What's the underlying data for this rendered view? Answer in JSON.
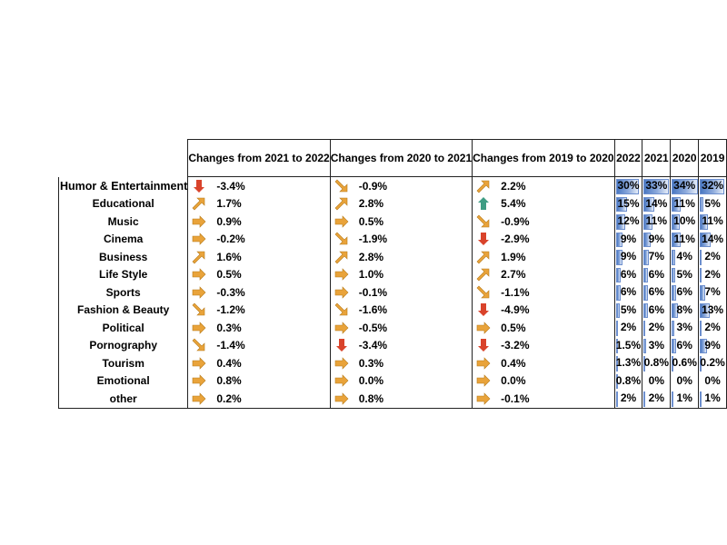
{
  "chart_data": {
    "type": "table",
    "columns": {
      "changes": [
        "Changes from 2021 to 2022",
        "Changes from 2020 to 2021",
        "Changes from 2019 to 2020"
      ],
      "years": [
        "2022",
        "2021",
        "2020",
        "2019"
      ]
    },
    "rows": [
      {
        "category": "Humor & Entertainment",
        "changes": [
          {
            "text": "-3.4%",
            "arrow": "down"
          },
          {
            "text": "-0.9%",
            "arrow": "down-right"
          },
          {
            "text": "2.2%",
            "arrow": "up-right"
          }
        ],
        "years": [
          "30%",
          "33%",
          "34%",
          "32%"
        ],
        "year_values": [
          30,
          33,
          34,
          32
        ]
      },
      {
        "category": "Educational",
        "changes": [
          {
            "text": "1.7%",
            "arrow": "up-right"
          },
          {
            "text": "2.8%",
            "arrow": "up-right"
          },
          {
            "text": "5.4%",
            "arrow": "up"
          }
        ],
        "years": [
          "15%",
          "14%",
          "11%",
          "5%"
        ],
        "year_values": [
          15,
          14,
          11,
          5
        ]
      },
      {
        "category": "Music",
        "changes": [
          {
            "text": "0.9%",
            "arrow": "right"
          },
          {
            "text": "0.5%",
            "arrow": "right"
          },
          {
            "text": "-0.9%",
            "arrow": "down-right"
          }
        ],
        "years": [
          "12%",
          "11%",
          "10%",
          "11%"
        ],
        "year_values": [
          12,
          11,
          10,
          11
        ]
      },
      {
        "category": "Cinema",
        "changes": [
          {
            "text": "-0.2%",
            "arrow": "right"
          },
          {
            "text": "-1.9%",
            "arrow": "down-right"
          },
          {
            "text": "-2.9%",
            "arrow": "down"
          }
        ],
        "years": [
          "9%",
          "9%",
          "11%",
          "14%"
        ],
        "year_values": [
          9,
          9,
          11,
          14
        ]
      },
      {
        "category": "Business",
        "changes": [
          {
            "text": "1.6%",
            "arrow": "up-right"
          },
          {
            "text": "2.8%",
            "arrow": "up-right"
          },
          {
            "text": "1.9%",
            "arrow": "up-right"
          }
        ],
        "years": [
          "9%",
          "7%",
          "4%",
          "2%"
        ],
        "year_values": [
          9,
          7,
          4,
          2
        ]
      },
      {
        "category": "Life Style",
        "changes": [
          {
            "text": "0.5%",
            "arrow": "right"
          },
          {
            "text": "1.0%",
            "arrow": "right"
          },
          {
            "text": "2.7%",
            "arrow": "up-right"
          }
        ],
        "years": [
          "6%",
          "6%",
          "5%",
          "2%"
        ],
        "year_values": [
          6,
          6,
          5,
          2
        ]
      },
      {
        "category": "Sports",
        "changes": [
          {
            "text": "-0.3%",
            "arrow": "right"
          },
          {
            "text": "-0.1%",
            "arrow": "right"
          },
          {
            "text": "-1.1%",
            "arrow": "down-right"
          }
        ],
        "years": [
          "6%",
          "6%",
          "6%",
          "7%"
        ],
        "year_values": [
          6,
          6,
          6,
          7
        ]
      },
      {
        "category": "Fashion & Beauty",
        "changes": [
          {
            "text": "-1.2%",
            "arrow": "down-right"
          },
          {
            "text": "-1.6%",
            "arrow": "down-right"
          },
          {
            "text": "-4.9%",
            "arrow": "down"
          }
        ],
        "years": [
          "5%",
          "6%",
          "8%",
          "13%"
        ],
        "year_values": [
          5,
          6,
          8,
          13
        ]
      },
      {
        "category": "Political",
        "changes": [
          {
            "text": "0.3%",
            "arrow": "right"
          },
          {
            "text": "-0.5%",
            "arrow": "right"
          },
          {
            "text": "0.5%",
            "arrow": "right"
          }
        ],
        "years": [
          "2%",
          "2%",
          "3%",
          "2%"
        ],
        "year_values": [
          2,
          2,
          3,
          2
        ]
      },
      {
        "category": "Pornography",
        "changes": [
          {
            "text": "-1.4%",
            "arrow": "down-right"
          },
          {
            "text": "-3.4%",
            "arrow": "down"
          },
          {
            "text": "-3.2%",
            "arrow": "down"
          }
        ],
        "years": [
          "1.5%",
          "3%",
          "6%",
          "9%"
        ],
        "year_values": [
          1.5,
          3,
          6,
          9
        ]
      },
      {
        "category": "Tourism",
        "changes": [
          {
            "text": "0.4%",
            "arrow": "right"
          },
          {
            "text": "0.3%",
            "arrow": "right"
          },
          {
            "text": "0.4%",
            "arrow": "right"
          }
        ],
        "years": [
          "1.3%",
          "0.8%",
          "0.6%",
          "0.2%"
        ],
        "year_values": [
          1.3,
          0.8,
          0.6,
          0.2
        ]
      },
      {
        "category": "Emotional",
        "changes": [
          {
            "text": "0.8%",
            "arrow": "right"
          },
          {
            "text": "0.0%",
            "arrow": "right"
          },
          {
            "text": "0.0%",
            "arrow": "right"
          }
        ],
        "years": [
          "0.8%",
          "0%",
          "0%",
          "0%"
        ],
        "year_values": [
          0.8,
          0,
          0,
          0
        ]
      },
      {
        "category": "other",
        "changes": [
          {
            "text": "0.2%",
            "arrow": "right"
          },
          {
            "text": "0.8%",
            "arrow": "right"
          },
          {
            "text": "-0.1%",
            "arrow": "right"
          }
        ],
        "years": [
          "2%",
          "2%",
          "1%",
          "1%"
        ],
        "year_values": [
          2,
          2,
          1,
          1
        ]
      }
    ],
    "bar_max": 34,
    "arrow_colors": {
      "up": "#3f9d84",
      "down": "#d9432b",
      "right": "#e9a33a",
      "diag": "#e9a33a"
    },
    "bar_colors": {
      "fill_start": "#4a78c2",
      "fill_end": "#e6edf8",
      "border": "#6d8fce"
    }
  }
}
